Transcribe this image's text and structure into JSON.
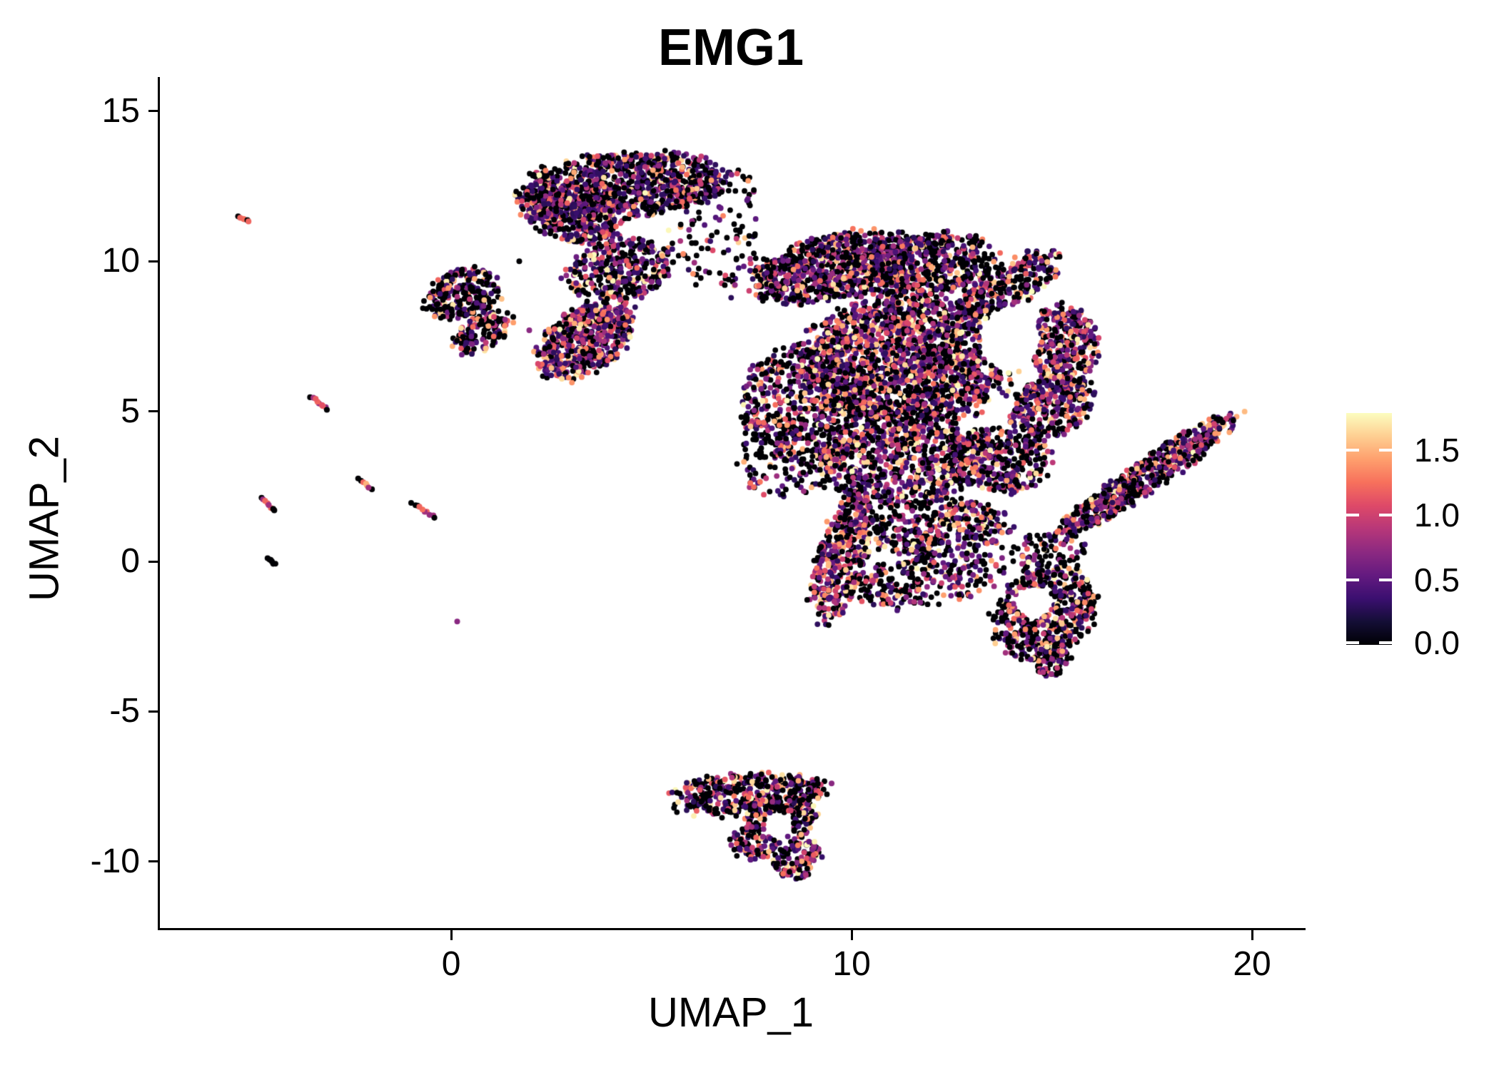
{
  "figure": {
    "background": "#ffffff"
  },
  "chart_data": {
    "type": "scatter",
    "title": "EMG1",
    "xlabel": "UMAP_1",
    "ylabel": "UMAP_2",
    "x_ticks": [
      0,
      10,
      20
    ],
    "x_tick_labels": [
      "0",
      "10",
      "20"
    ],
    "y_ticks": [
      15,
      10,
      5,
      0,
      -5,
      -10
    ],
    "y_tick_labels": [
      "15",
      "10",
      "5",
      "0",
      "-5",
      "-10"
    ],
    "xlim": [
      -7.31,
      21.3
    ],
    "ylim": [
      -12.24,
      16.14
    ],
    "grid": false,
    "legend_position": "right",
    "point_radius_px": 3.9,
    "seed": 1337,
    "colorbar": {
      "min": 0,
      "max": 1.786,
      "ticks": [
        0.0,
        0.5,
        1.0,
        1.5
      ],
      "tick_labels": [
        "0.0",
        "0.5",
        "1.0",
        "1.5"
      ],
      "palette": "magma",
      "stops": [
        [
          0.0,
          "#000004"
        ],
        [
          0.1,
          "#140e36"
        ],
        [
          0.2,
          "#3b0f70"
        ],
        [
          0.3,
          "#641a80"
        ],
        [
          0.4,
          "#8c2981"
        ],
        [
          0.5,
          "#b73779"
        ],
        [
          0.6,
          "#de4968"
        ],
        [
          0.7,
          "#f7705c"
        ],
        [
          0.8,
          "#fe9f6d"
        ],
        [
          0.9,
          "#fecf92"
        ],
        [
          1.0,
          "#fcfdbf"
        ]
      ]
    },
    "clusters": [
      {
        "name": "top-main",
        "cx": 4.35,
        "cy": 12.55,
        "rx": 2.6,
        "ry": 1.05,
        "rot": -4,
        "n": 950,
        "p0": 0.36,
        "vpow": 2.1
      },
      {
        "name": "top-left-lobe",
        "cx": 3.0,
        "cy": 11.6,
        "rx": 1.25,
        "ry": 0.95,
        "rot": 15,
        "n": 450,
        "p0": 0.3,
        "vpow": 2.2
      },
      {
        "name": "top-tail",
        "cx": 4.2,
        "cy": 9.7,
        "rx": 1.35,
        "ry": 0.95,
        "rot": -10,
        "n": 330,
        "p0": 0.4,
        "vpow": 2.0
      },
      {
        "name": "top-right-sparse",
        "cx": 6.6,
        "cy": 11.2,
        "rx": 1.3,
        "ry": 2.0,
        "rot": 0,
        "n": 110,
        "p0": 0.52,
        "vpow": 2.0
      },
      {
        "name": "bridge-dots",
        "cx": 7.6,
        "cy": 9.4,
        "rx": 0.9,
        "ry": 0.8,
        "rot": 0,
        "n": 45,
        "p0": 0.5,
        "vpow": 2.0
      },
      {
        "name": "left-blob",
        "cx": 0.3,
        "cy": 8.9,
        "rx": 0.95,
        "ry": 0.8,
        "rot": -15,
        "n": 260,
        "p0": 0.52,
        "vpow": 1.9
      },
      {
        "name": "left-hook",
        "cx": 0.75,
        "cy": 7.6,
        "rx": 0.8,
        "ry": 0.55,
        "rot": -30,
        "n": 130,
        "p0": 0.5,
        "vpow": 1.9
      },
      {
        "name": "mid-diamond",
        "cx": 3.35,
        "cy": 7.4,
        "rx": 1.35,
        "ry": 1.05,
        "rot": -35,
        "n": 600,
        "p0": 0.3,
        "vpow": 1.9
      },
      {
        "name": "c-top-band",
        "cx": 9.6,
        "cy": 9.8,
        "rx": 2.0,
        "ry": 1.05,
        "rot": -12,
        "n": 800,
        "p0": 0.4,
        "vpow": 1.8
      },
      {
        "name": "c-top-band2",
        "cx": 12.0,
        "cy": 9.9,
        "rx": 1.6,
        "ry": 1.0,
        "rot": -8,
        "n": 500,
        "p0": 0.42,
        "vpow": 1.8
      },
      {
        "name": "c-core",
        "cx": 11.4,
        "cy": 6.7,
        "rx": 2.5,
        "ry": 2.1,
        "rot": 0,
        "n": 1900,
        "p0": 0.34,
        "vpow": 1.6
      },
      {
        "name": "c-left-core",
        "cx": 8.9,
        "cy": 5.2,
        "rx": 1.6,
        "ry": 1.9,
        "rot": 10,
        "n": 650,
        "p0": 0.42,
        "vpow": 1.8
      },
      {
        "name": "crescent-top",
        "cx": 13.9,
        "cy": 9.2,
        "rx": 1.4,
        "ry": 0.75,
        "rot": -30,
        "n": 300,
        "p0": 0.44,
        "vpow": 1.9
      },
      {
        "name": "crescent-right",
        "cx": 15.3,
        "cy": 7.2,
        "rx": 0.85,
        "ry": 1.3,
        "rot": -10,
        "n": 330,
        "p0": 0.36,
        "vpow": 1.7
      },
      {
        "name": "crescent-low",
        "cx": 15.0,
        "cy": 5.2,
        "rx": 1.05,
        "ry": 1.0,
        "rot": -20,
        "n": 330,
        "p0": 0.34,
        "vpow": 1.6
      },
      {
        "name": "c-south",
        "cx": 11.2,
        "cy": 3.3,
        "rx": 2.0,
        "ry": 1.35,
        "rot": -5,
        "n": 750,
        "p0": 0.38,
        "vpow": 1.7
      },
      {
        "name": "c-south-right",
        "cx": 13.7,
        "cy": 3.4,
        "rx": 1.2,
        "ry": 1.1,
        "rot": 0,
        "n": 330,
        "p0": 0.44,
        "vpow": 1.8
      },
      {
        "name": "c-south-low",
        "cx": 12.2,
        "cy": 1.1,
        "rx": 1.7,
        "ry": 1.0,
        "rot": 0,
        "n": 380,
        "p0": 0.42,
        "vpow": 1.7
      },
      {
        "name": "c-west-sparse",
        "cx": 8.3,
        "cy": 3.4,
        "rx": 1.1,
        "ry": 1.3,
        "rot": 0,
        "n": 140,
        "p0": 0.5,
        "vpow": 1.9
      },
      {
        "name": "c-arm",
        "cx": 9.75,
        "cy": 0.15,
        "rx": 1.65,
        "ry": 0.8,
        "rot": -72,
        "n": 430,
        "p0": 0.32,
        "vpow": 1.5
      },
      {
        "name": "c-arm-bridge",
        "cx": 11.9,
        "cy": -0.6,
        "rx": 1.9,
        "ry": 0.85,
        "rot": -8,
        "n": 260,
        "p0": 0.46,
        "vpow": 1.7
      },
      {
        "name": "lower-right",
        "cx": 14.8,
        "cy": -1.7,
        "rx": 1.3,
        "ry": 1.35,
        "rot": -25,
        "n": 620,
        "p0": 0.46,
        "vpow": 1.6
      },
      {
        "name": "lr-tail",
        "cx": 15.0,
        "cy": -3.3,
        "rx": 0.5,
        "ry": 0.55,
        "rot": 0,
        "n": 90,
        "p0": 0.42,
        "vpow": 1.7
      },
      {
        "name": "lr-top-sparse",
        "cx": 14.9,
        "cy": 0.3,
        "rx": 0.9,
        "ry": 0.7,
        "rot": 0,
        "n": 90,
        "p0": 0.5,
        "vpow": 1.8
      },
      {
        "name": "right-wing",
        "cx": 17.35,
        "cy": 2.85,
        "rx": 2.6,
        "ry": 0.55,
        "rot": -34,
        "n": 650,
        "p0": 0.38,
        "vpow": 1.6
      },
      {
        "name": "bottom-top",
        "cx": 7.4,
        "cy": -7.75,
        "rx": 1.9,
        "ry": 0.7,
        "rot": -4,
        "n": 430,
        "p0": 0.46,
        "vpow": 1.7
      },
      {
        "name": "bottom-mid",
        "cx": 8.1,
        "cy": -8.9,
        "rx": 1.15,
        "ry": 0.85,
        "rot": -30,
        "n": 280,
        "p0": 0.42,
        "vpow": 1.6
      },
      {
        "name": "bottom-tail",
        "cx": 8.65,
        "cy": -9.95,
        "rx": 0.6,
        "ry": 0.6,
        "rot": -20,
        "n": 130,
        "p0": 0.42,
        "vpow": 1.6
      }
    ],
    "holes": [
      {
        "cx": 13.95,
        "cy": 7.4,
        "rx": 0.75,
        "ry": 1.1
      },
      {
        "cx": 14.55,
        "cy": -1.35,
        "rx": 0.5,
        "ry": 0.55
      },
      {
        "cx": 8.16,
        "cy": -8.79,
        "rx": 0.35,
        "ry": 0.45
      }
    ],
    "streaks": [
      {
        "x1": -5.3,
        "y1": 11.5,
        "x2": -5.05,
        "y2": 11.3,
        "n": 6,
        "values": [
          0,
          1.2,
          1.25,
          1.15,
          0,
          1.2
        ]
      },
      {
        "x1": -3.5,
        "y1": 5.5,
        "x2": -3.1,
        "y2": 5.05,
        "n": 9,
        "values": [
          0,
          0.8,
          1.15,
          1.2,
          0.75,
          1.1,
          1.2,
          0.7,
          0
        ]
      },
      {
        "x1": -4.75,
        "y1": 2.1,
        "x2": -4.4,
        "y2": 1.7,
        "n": 8,
        "values": [
          0,
          0.75,
          1.2,
          1.15,
          0.8,
          1.2,
          0,
          0
        ]
      },
      {
        "x1": -2.3,
        "y1": 2.75,
        "x2": -2.0,
        "y2": 2.4,
        "n": 7,
        "values": [
          0,
          0,
          1.2,
          1.5,
          1.45,
          0.8,
          0
        ]
      },
      {
        "x1": -0.9,
        "y1": 1.9,
        "x2": -0.4,
        "y2": 1.45,
        "n": 9,
        "values": [
          0,
          0,
          1.2,
          1.25,
          0.8,
          1.2,
          0.75,
          0.8,
          0
        ]
      },
      {
        "x1": -4.6,
        "y1": 0.12,
        "x2": -4.4,
        "y2": -0.1,
        "n": 6,
        "values": [
          0,
          0,
          0,
          0,
          0,
          0
        ]
      }
    ],
    "outliers": [
      [
        1.7,
        10.0,
        0
      ],
      [
        1.55,
        8.15,
        0
      ],
      [
        1.95,
        7.7,
        0.7
      ],
      [
        13.6,
        9.8,
        0
      ],
      [
        0.15,
        -2.0,
        0.7
      ],
      [
        9.5,
        -7.4,
        0.7
      ],
      [
        9.3,
        -7.6,
        0
      ],
      [
        -1.0,
        1.95,
        0
      ]
    ]
  }
}
